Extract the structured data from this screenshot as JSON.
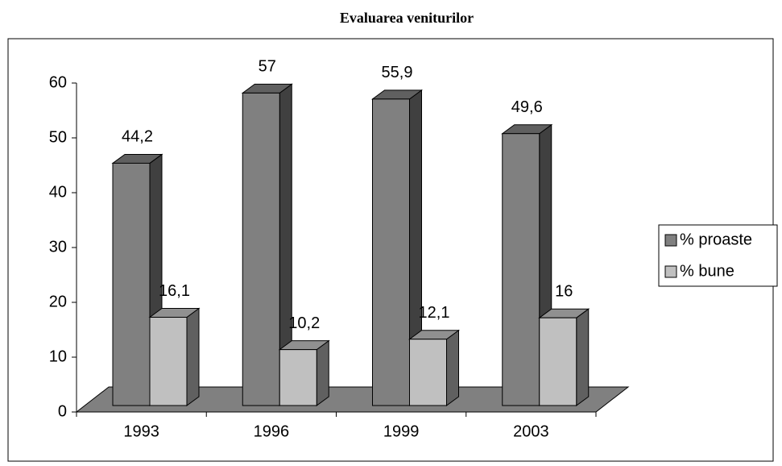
{
  "chart_data": {
    "type": "bar",
    "title": "Evaluarea veniturilor",
    "categories": [
      "1993",
      "1996",
      "1999",
      "2003"
    ],
    "series": [
      {
        "name": "% proaste",
        "color": "#808080",
        "values": [
          44.2,
          57,
          55.9,
          49.6
        ],
        "value_labels": [
          "44,2",
          "57",
          "55,9",
          "49,6"
        ]
      },
      {
        "name": "% bune",
        "color": "#c0c0c0",
        "values": [
          16.1,
          10.2,
          12.1,
          16
        ],
        "value_labels": [
          "16,1",
          "10,2",
          "12,1",
          "16"
        ]
      }
    ],
    "ylim": [
      0,
      60
    ],
    "yticks": [
      0,
      10,
      20,
      30,
      40,
      50,
      60
    ],
    "legend": "right"
  }
}
